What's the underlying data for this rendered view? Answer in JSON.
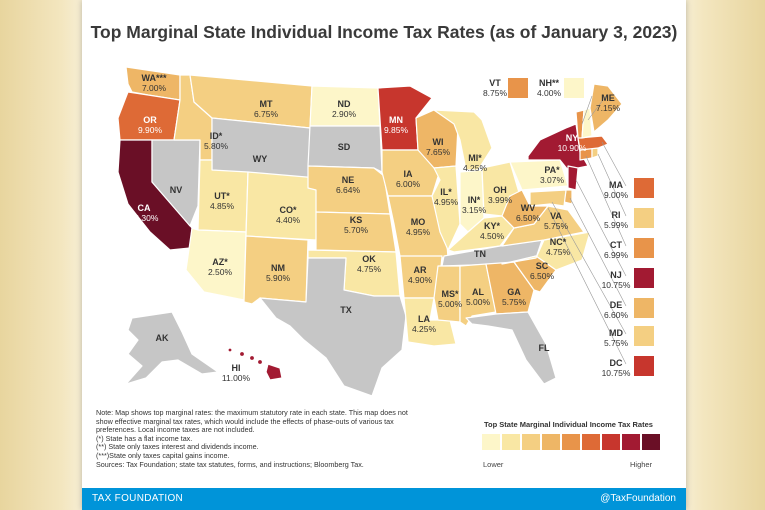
{
  "title": "Top Marginal State Individual Income Tax Rates (as of January 3, 2023)",
  "colors": {
    "none": "#c6c6c6",
    "scale": [
      "#fdf6c9",
      "#f9e7a4",
      "#f4cf82",
      "#eeb666",
      "#e8944a",
      "#de6a36",
      "#c7362d",
      "#a21a32",
      "#6a0f26"
    ]
  },
  "states": [
    {
      "code": "WA***",
      "rate": "7.00%"
    },
    {
      "code": "OR",
      "rate": "9.90%"
    },
    {
      "code": "CA",
      "rate": "13.30%"
    },
    {
      "code": "NV",
      "rate": ""
    },
    {
      "code": "ID*",
      "rate": "5.80%"
    },
    {
      "code": "MT",
      "rate": "6.75%"
    },
    {
      "code": "WY",
      "rate": ""
    },
    {
      "code": "UT*",
      "rate": "4.85%"
    },
    {
      "code": "AZ*",
      "rate": "2.50%"
    },
    {
      "code": "CO*",
      "rate": "4.40%"
    },
    {
      "code": "NM",
      "rate": "5.90%"
    },
    {
      "code": "ND",
      "rate": "2.90%"
    },
    {
      "code": "SD",
      "rate": ""
    },
    {
      "code": "NE",
      "rate": "6.64%"
    },
    {
      "code": "KS",
      "rate": "5.70%"
    },
    {
      "code": "OK",
      "rate": "4.75%"
    },
    {
      "code": "TX",
      "rate": ""
    },
    {
      "code": "MN",
      "rate": "9.85%"
    },
    {
      "code": "IA",
      "rate": "6.00%"
    },
    {
      "code": "MO",
      "rate": "4.95%"
    },
    {
      "code": "AR",
      "rate": "4.90%"
    },
    {
      "code": "LA",
      "rate": "4.25%"
    },
    {
      "code": "WI",
      "rate": "7.65%"
    },
    {
      "code": "IL*",
      "rate": "4.95%"
    },
    {
      "code": "MI*",
      "rate": "4.25%"
    },
    {
      "code": "IN*",
      "rate": "3.15%"
    },
    {
      "code": "OH",
      "rate": "3.99%"
    },
    {
      "code": "KY*",
      "rate": "4.50%"
    },
    {
      "code": "TN",
      "rate": ""
    },
    {
      "code": "MS*",
      "rate": "5.00%"
    },
    {
      "code": "AL",
      "rate": "5.00%"
    },
    {
      "code": "GA",
      "rate": "5.75%"
    },
    {
      "code": "FL",
      "rate": ""
    },
    {
      "code": "SC",
      "rate": "6.50%"
    },
    {
      "code": "NC*",
      "rate": "4.75%"
    },
    {
      "code": "VA",
      "rate": "5.75%"
    },
    {
      "code": "WV",
      "rate": "6.50%"
    },
    {
      "code": "PA*",
      "rate": "3.07%"
    },
    {
      "code": "NY",
      "rate": "10.90%"
    },
    {
      "code": "ME",
      "rate": "7.15%"
    },
    {
      "code": "AK",
      "rate": ""
    },
    {
      "code": "HI",
      "rate": "11.00%"
    }
  ],
  "callouts_top": [
    {
      "code": "VT",
      "rate": "8.75%"
    },
    {
      "code": "NH**",
      "rate": "4.00%"
    }
  ],
  "callouts_right": [
    {
      "code": "MA",
      "rate": "9.00%"
    },
    {
      "code": "RI",
      "rate": "5.99%"
    },
    {
      "code": "CT",
      "rate": "6.99%"
    },
    {
      "code": "NJ",
      "rate": "10.75%"
    },
    {
      "code": "DE",
      "rate": "6.60%"
    },
    {
      "code": "MD",
      "rate": "5.75%"
    },
    {
      "code": "DC",
      "rate": "10.75%"
    }
  ],
  "notes": [
    "Note: Map shows top marginal rates: the maximum statutory rate in each state. This map does not show effective marginal tax rates, which would include the effects of phase-outs of various tax preferences. Local income taxes are not included.",
    "(*) State has a flat income tax.",
    "(**) State only taxes interest and dividends income.",
    "(***)State only taxes capital gains income.",
    "Sources: Tax Foundation; state tax statutes, forms, and instructions; Bloomberg Tax."
  ],
  "legend": {
    "title": "Top State Marginal Individual Income Tax Rates",
    "low": "Lower",
    "high": "Higher"
  },
  "footer": {
    "brand": "TAX FOUNDATION",
    "handle": "@TaxFoundation"
  }
}
